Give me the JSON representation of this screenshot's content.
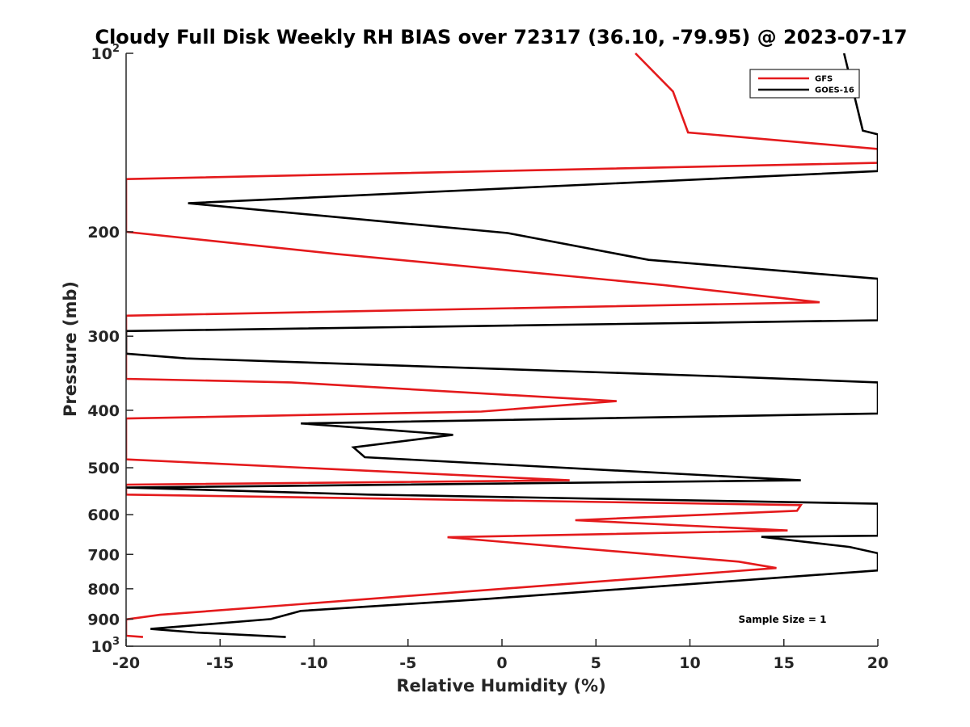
{
  "chart_data": {
    "type": "line",
    "title": "Cloudy Full Disk Weekly RH BIAS over 72317 (36.10, -79.95) @ 2023-07-17",
    "xlabel": "Relative Humidity (%)",
    "ylabel": "Pressure (mb)",
    "xlim": [
      -20,
      20
    ],
    "ylim": [
      100,
      1000
    ],
    "yscale": "log",
    "y_reversed": true,
    "xticks": [
      -20,
      -15,
      -10,
      -5,
      0,
      5,
      10,
      15,
      20
    ],
    "xtick_labels": [
      "-20",
      "-15",
      "-10",
      "-5",
      "0",
      "5",
      "10",
      "15",
      "20"
    ],
    "yticks": [
      {
        "value": 100,
        "base": "10",
        "exp": "2"
      },
      {
        "value": 200,
        "label": "200"
      },
      {
        "value": 300,
        "label": "300"
      },
      {
        "value": 400,
        "label": "400"
      },
      {
        "value": 500,
        "label": "500"
      },
      {
        "value": 600,
        "label": "600"
      },
      {
        "value": 700,
        "label": "700"
      },
      {
        "value": 800,
        "label": "800"
      },
      {
        "value": 900,
        "label": "900"
      },
      {
        "value": 1000,
        "base": "10",
        "exp": "3"
      }
    ],
    "legend_position": "top-right",
    "annotation": "Sample Size = 1",
    "series": [
      {
        "name": "GFS",
        "color": "#e41a1c",
        "points": [
          [
            7.1,
            100
          ],
          [
            9.1,
            116
          ],
          [
            9.9,
            136
          ],
          [
            20,
            145
          ],
          [
            20,
            153
          ],
          [
            -20,
            163
          ],
          [
            -20,
            200
          ],
          [
            -8.8,
            218
          ],
          [
            8.6,
            246
          ],
          [
            16.9,
            263
          ],
          [
            -20,
            277
          ],
          [
            -20,
            354
          ],
          [
            -11.2,
            359
          ],
          [
            6.1,
            386
          ],
          [
            -1.1,
            402
          ],
          [
            -20,
            413
          ],
          [
            -20,
            484
          ],
          [
            3.6,
            525
          ],
          [
            -20,
            534
          ],
          [
            -20,
            555
          ],
          [
            15.9,
            578
          ],
          [
            15.7,
            591
          ],
          [
            3.9,
            613
          ],
          [
            15.2,
            638
          ],
          [
            -2.9,
            655
          ],
          [
            12.6,
            720
          ],
          [
            14.6,
            738
          ],
          [
            -18.2,
            885
          ],
          [
            -20,
            901
          ],
          [
            -20,
            960
          ],
          [
            -19.1,
            965
          ]
        ]
      },
      {
        "name": "GOES-16",
        "color": "#000000",
        "points": [
          [
            18.2,
            100
          ],
          [
            19.2,
            135
          ],
          [
            20,
            137
          ],
          [
            20,
            158
          ],
          [
            -16.7,
            179
          ],
          [
            0.3,
            201
          ],
          [
            7.8,
            223
          ],
          [
            20,
            240
          ],
          [
            20,
            282
          ],
          [
            -20,
            294
          ],
          [
            -20,
            321
          ],
          [
            -16.8,
            327
          ],
          [
            12.1,
            351
          ],
          [
            20,
            359
          ],
          [
            20,
            405
          ],
          [
            -10.7,
            421
          ],
          [
            -2.6,
            440
          ],
          [
            -7.9,
            462
          ],
          [
            -7.3,
            480
          ],
          [
            15.9,
            525
          ],
          [
            -20,
            540
          ],
          [
            -7.1,
            555
          ],
          [
            20,
            575
          ],
          [
            20,
            651
          ],
          [
            13.8,
            654
          ],
          [
            18.5,
            680
          ],
          [
            20,
            697
          ],
          [
            20,
            745
          ],
          [
            -0.8,
            832
          ],
          [
            -10.7,
            872
          ],
          [
            -12.3,
            900
          ],
          [
            -18.7,
            935
          ],
          [
            -16.3,
            948
          ],
          [
            -11.5,
            965
          ]
        ]
      }
    ]
  }
}
